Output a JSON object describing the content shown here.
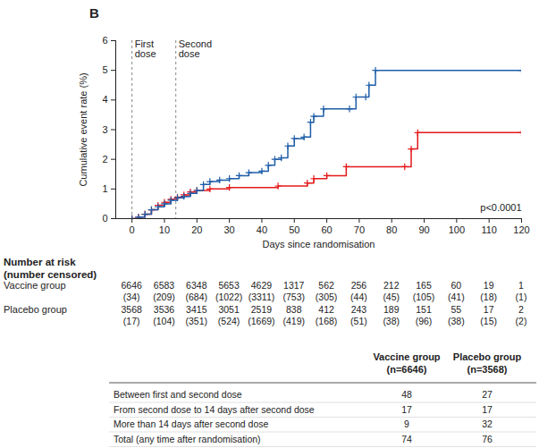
{
  "chart_data": {
    "type": "line",
    "title": "B",
    "x_label": "Days since randomisation",
    "y_label": "Cumulative event rate (%)",
    "xlim": [
      -5,
      120
    ],
    "xticks": [
      0,
      10,
      20,
      30,
      40,
      50,
      60,
      70,
      80,
      90,
      100,
      110,
      120
    ],
    "ylim": [
      0,
      6
    ],
    "yticks": [
      0,
      1,
      2,
      3,
      4,
      5,
      6
    ],
    "line_style": "step",
    "reference_lines": [
      {
        "x": 0,
        "label": "First dose"
      },
      {
        "x": 13.5,
        "label": "Second dose"
      }
    ],
    "annotations": [
      {
        "text": "p<0.0001",
        "x": 120,
        "y": 0.35
      }
    ],
    "series": [
      {
        "name": "Placebo group",
        "color": "#e41a1c",
        "marker": "plus",
        "x": [
          0,
          2,
          4,
          6,
          8,
          10,
          12,
          14,
          16,
          18,
          20,
          24,
          30,
          45,
          54,
          56,
          60,
          66,
          84,
          86,
          88,
          120
        ],
        "values": [
          0,
          0.05,
          0.15,
          0.3,
          0.45,
          0.55,
          0.65,
          0.72,
          0.8,
          0.9,
          0.95,
          1.0,
          1.05,
          1.1,
          1.2,
          1.35,
          1.45,
          1.75,
          1.75,
          2.35,
          2.9,
          2.9
        ]
      },
      {
        "name": "Vaccine group",
        "color": "#1f5ea8",
        "marker": "plus",
        "x": [
          0,
          2,
          4,
          6,
          8,
          10,
          12,
          14,
          16,
          18,
          20,
          22,
          24,
          27,
          30,
          33,
          36,
          40,
          42,
          44,
          46,
          48,
          50,
          53,
          55,
          56,
          59,
          67,
          69,
          72,
          73,
          75,
          120
        ],
        "values": [
          0,
          0.05,
          0.15,
          0.3,
          0.4,
          0.5,
          0.62,
          0.7,
          0.75,
          0.85,
          0.95,
          1.15,
          1.25,
          1.3,
          1.35,
          1.45,
          1.55,
          1.6,
          1.8,
          2.0,
          2.05,
          2.45,
          2.7,
          2.75,
          3.25,
          3.45,
          3.7,
          3.7,
          4.1,
          4.1,
          4.5,
          5.0,
          5.0
        ]
      }
    ]
  },
  "risk_table": {
    "title": "Number at risk",
    "subtitle": "(number censored)",
    "x": [
      0,
      10,
      20,
      30,
      40,
      50,
      60,
      70,
      80,
      90,
      100,
      110,
      120
    ],
    "rows": [
      {
        "name": "Vaccine group",
        "at_risk": [
          6646,
          6583,
          6348,
          5653,
          4629,
          1317,
          562,
          256,
          212,
          165,
          60,
          19,
          1
        ],
        "censored": [
          "(34)",
          "(209)",
          "(684)",
          "(1022)",
          "(3311)",
          "(753)",
          "(305)",
          "(44)",
          "(45)",
          "(105)",
          "(41)",
          "(18)",
          "(1)"
        ]
      },
      {
        "name": "Placebo group",
        "at_risk": [
          3568,
          3536,
          3415,
          3051,
          2519,
          838,
          412,
          243,
          189,
          151,
          55,
          17,
          2
        ],
        "censored": [
          "(17)",
          "(104)",
          "(351)",
          "(524)",
          "(1669)",
          "(419)",
          "(168)",
          "(51)",
          "(38)",
          "(96)",
          "(38)",
          "(15)",
          "(2)"
        ]
      }
    ]
  },
  "events_table": {
    "columns": [
      {
        "name": "Vaccine group",
        "n": "(n=6646)"
      },
      {
        "name": "Placebo group",
        "n": "(n=3568)"
      }
    ],
    "rows": [
      {
        "label": "Between first and second dose",
        "values": [
          48,
          27
        ]
      },
      {
        "label": "From second dose to 14 days after second dose",
        "values": [
          17,
          17
        ]
      },
      {
        "label": "More than 14 days after second dose",
        "values": [
          9,
          32
        ]
      },
      {
        "label": "Total (any time after randomisation)",
        "values": [
          74,
          76
        ]
      }
    ]
  }
}
